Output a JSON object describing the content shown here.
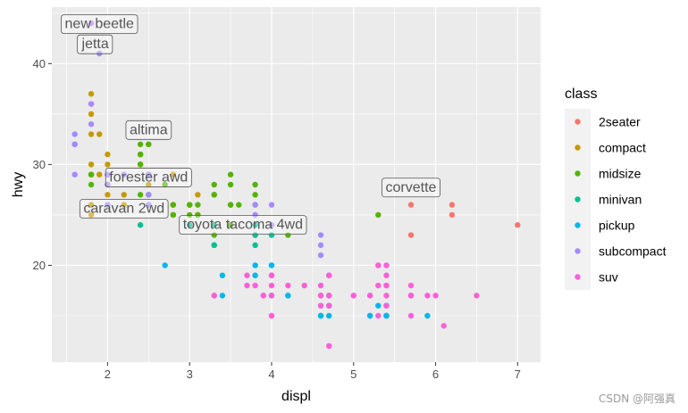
{
  "chart_data": {
    "type": "scatter",
    "title": "",
    "xlabel": "displ",
    "ylabel": "hwy",
    "xlim": [
      1.32,
      7.28
    ],
    "ylim": [
      10.4,
      45.6
    ],
    "x_ticks": [
      2,
      3,
      4,
      5,
      6,
      7
    ],
    "y_ticks": [
      20,
      30,
      40
    ],
    "grid": true,
    "legend": {
      "title": "class",
      "position": "right",
      "entries": [
        "2seater",
        "compact",
        "midsize",
        "minivan",
        "pickup",
        "subcompact",
        "suv"
      ]
    },
    "colors": {
      "2seater": "#F8766D",
      "compact": "#C49A00",
      "midsize": "#53B400",
      "minivan": "#00C094",
      "pickup": "#00B6EB",
      "subcompact": "#A58AFF",
      "suv": "#FB61D7"
    },
    "series": [
      {
        "name": "2seater",
        "points": [
          [
            5.7,
            26
          ],
          [
            5.7,
            23
          ],
          [
            6.2,
            26
          ],
          [
            6.2,
            25
          ],
          [
            7.0,
            24
          ]
        ]
      },
      {
        "name": "compact",
        "points": [
          [
            1.8,
            29
          ],
          [
            1.8,
            29
          ],
          [
            2.0,
            31
          ],
          [
            2.0,
            30
          ],
          [
            2.8,
            26
          ],
          [
            2.8,
            26
          ],
          [
            3.1,
            27
          ],
          [
            1.8,
            26
          ],
          [
            1.8,
            25
          ],
          [
            2.0,
            28
          ],
          [
            2.0,
            27
          ],
          [
            2.8,
            25
          ],
          [
            2.8,
            25
          ],
          [
            3.1,
            25
          ],
          [
            3.1,
            25
          ],
          [
            2.2,
            26
          ],
          [
            2.2,
            27
          ],
          [
            2.4,
            31
          ],
          [
            2.4,
            31
          ],
          [
            3.0,
            26
          ],
          [
            1.8,
            37
          ],
          [
            1.8,
            35
          ],
          [
            1.8,
            33
          ],
          [
            1.8,
            30
          ],
          [
            2.0,
            29
          ],
          [
            2.5,
            26
          ],
          [
            2.5,
            29
          ],
          [
            1.9,
            29
          ],
          [
            2.0,
            28
          ],
          [
            2.0,
            29
          ],
          [
            2.5,
            29
          ],
          [
            2.8,
            29
          ],
          [
            1.9,
            33
          ],
          [
            2.4,
            30
          ],
          [
            2.5,
            27
          ],
          [
            2.5,
            28
          ],
          [
            2.5,
            29
          ]
        ]
      },
      {
        "name": "midsize",
        "points": [
          [
            2.8,
            26
          ],
          [
            2.8,
            25
          ],
          [
            3.1,
            25
          ],
          [
            2.4,
            27
          ],
          [
            2.4,
            30
          ],
          [
            3.1,
            26
          ],
          [
            3.5,
            29
          ],
          [
            3.6,
            26
          ],
          [
            2.4,
            30
          ],
          [
            3.0,
            26
          ],
          [
            3.3,
            28
          ],
          [
            3.3,
            27
          ],
          [
            3.5,
            26
          ],
          [
            2.5,
            29
          ],
          [
            2.5,
            32
          ],
          [
            3.0,
            26
          ],
          [
            3.5,
            26
          ],
          [
            2.4,
            31
          ],
          [
            2.4,
            32
          ],
          [
            2.5,
            27
          ],
          [
            3.3,
            27
          ],
          [
            1.8,
            29
          ],
          [
            2.5,
            32
          ],
          [
            3.8,
            26
          ],
          [
            3.8,
            27
          ],
          [
            3.8,
            28
          ],
          [
            5.3,
            25
          ],
          [
            3.8,
            23
          ],
          [
            3.5,
            28
          ],
          [
            3.0,
            25
          ],
          [
            3.3,
            23
          ],
          [
            2.7,
            28
          ],
          [
            2.0,
            28
          ],
          [
            3.5,
            24
          ],
          [
            4.2,
            23
          ],
          [
            1.8,
            28
          ]
        ]
      },
      {
        "name": "minivan",
        "points": [
          [
            2.4,
            24
          ],
          [
            3.0,
            24
          ],
          [
            3.3,
            22
          ],
          [
            3.3,
            22
          ],
          [
            3.3,
            24
          ],
          [
            3.8,
            23
          ],
          [
            3.8,
            22
          ],
          [
            4.0,
            23
          ],
          [
            3.8,
            24
          ],
          [
            3.3,
            22
          ]
        ]
      },
      {
        "name": "pickup",
        "points": [
          [
            2.7,
            20
          ],
          [
            3.4,
            19
          ],
          [
            3.4,
            17
          ],
          [
            4.0,
            17
          ],
          [
            4.0,
            20
          ],
          [
            4.7,
            17
          ],
          [
            4.7,
            15
          ],
          [
            4.7,
            17
          ],
          [
            5.2,
            17
          ],
          [
            5.2,
            15
          ],
          [
            5.7,
            17
          ],
          [
            5.9,
            15
          ],
          [
            4.7,
            16
          ],
          [
            4.7,
            16
          ],
          [
            4.6,
            15
          ],
          [
            5.4,
            15
          ],
          [
            5.4,
            15
          ],
          [
            4.6,
            16
          ],
          [
            4.2,
            17
          ],
          [
            4.2,
            17
          ],
          [
            3.8,
            20
          ],
          [
            4.0,
            20
          ],
          [
            4.0,
            17
          ],
          [
            4.6,
            15
          ],
          [
            5.3,
            16
          ],
          [
            5.4,
            16
          ],
          [
            5.2,
            15
          ],
          [
            5.4,
            16
          ],
          [
            5.4,
            15
          ],
          [
            4.6,
            17
          ],
          [
            3.8,
            19
          ],
          [
            4.0,
            19
          ],
          [
            4.6,
            15
          ]
        ]
      },
      {
        "name": "subcompact",
        "points": [
          [
            3.8,
            26
          ],
          [
            3.8,
            25
          ],
          [
            4.0,
            26
          ],
          [
            4.0,
            24
          ],
          [
            4.6,
            21
          ],
          [
            4.6,
            22
          ],
          [
            4.6,
            23
          ],
          [
            5.4,
            20
          ],
          [
            1.6,
            33
          ],
          [
            1.6,
            32
          ],
          [
            1.6,
            32
          ],
          [
            1.6,
            29
          ],
          [
            1.6,
            32
          ],
          [
            1.8,
            34
          ],
          [
            1.8,
            36
          ],
          [
            1.8,
            36
          ],
          [
            2.0,
            29
          ],
          [
            2.5,
            26
          ],
          [
            2.5,
            27
          ],
          [
            1.8,
            44
          ],
          [
            1.9,
            41
          ],
          [
            2.0,
            29
          ],
          [
            2.0,
            26
          ],
          [
            2.2,
            29
          ],
          [
            2.5,
            29
          ],
          [
            2.0,
            28
          ],
          [
            2.5,
            26
          ],
          [
            2.0,
            26
          ]
        ]
      },
      {
        "name": "suv",
        "points": [
          [
            5.3,
            20
          ],
          [
            5.3,
            15
          ],
          [
            5.3,
            20
          ],
          [
            5.7,
            17
          ],
          [
            6.0,
            17
          ],
          [
            5.7,
            15
          ],
          [
            6.5,
            17
          ],
          [
            3.7,
            19
          ],
          [
            3.7,
            18
          ],
          [
            3.9,
            17
          ],
          [
            3.9,
            17
          ],
          [
            4.7,
            19
          ],
          [
            4.7,
            19
          ],
          [
            4.7,
            12
          ],
          [
            5.2,
            17
          ],
          [
            5.7,
            17
          ],
          [
            5.9,
            17
          ],
          [
            4.7,
            12
          ],
          [
            4.7,
            17
          ],
          [
            4.7,
            17
          ],
          [
            5.3,
            18
          ],
          [
            5.4,
            18
          ],
          [
            5.4,
            20
          ],
          [
            4.0,
            19
          ],
          [
            4.0,
            18
          ],
          [
            4.6,
            18
          ],
          [
            5.0,
            17
          ],
          [
            4.2,
            18
          ],
          [
            4.4,
            18
          ],
          [
            4.6,
            17
          ],
          [
            5.4,
            17
          ],
          [
            5.4,
            16
          ],
          [
            5.4,
            18
          ],
          [
            4.0,
            15
          ],
          [
            4.0,
            19
          ],
          [
            4.6,
            16
          ],
          [
            5.0,
            17
          ],
          [
            6.1,
            14
          ],
          [
            4.7,
            19
          ],
          [
            5.7,
            18
          ],
          [
            3.3,
            17
          ],
          [
            3.3,
            17
          ],
          [
            4.7,
            19
          ],
          [
            5.7,
            17
          ],
          [
            4.0,
            17
          ],
          [
            4.0,
            15
          ],
          [
            4.6,
            17
          ],
          [
            4.7,
            16
          ],
          [
            5.4,
            19
          ],
          [
            3.8,
            18
          ]
        ]
      }
    ],
    "annotations": [
      {
        "label": "new beetle",
        "x": 1.9,
        "y": 44
      },
      {
        "label": "jetta",
        "x": 1.85,
        "y": 42
      },
      {
        "label": "altima",
        "x": 2.5,
        "y": 33.5
      },
      {
        "label": "forester awd",
        "x": 2.5,
        "y": 28.8
      },
      {
        "label": "caravan 2wd",
        "x": 2.2,
        "y": 25.7
      },
      {
        "label": "toyota tacoma 4wd",
        "x": 3.65,
        "y": 24.1
      },
      {
        "label": "corvette",
        "x": 5.7,
        "y": 27.8
      }
    ]
  },
  "watermark": "CSDN @阿强真"
}
